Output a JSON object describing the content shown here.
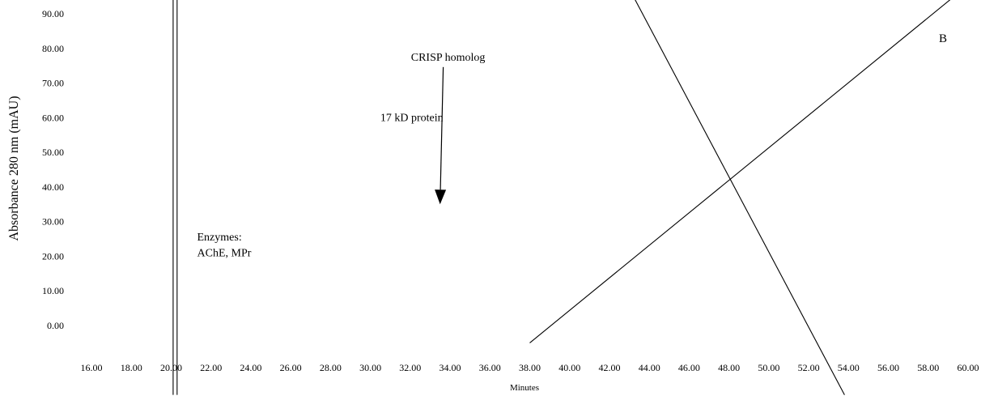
{
  "chart_data": {
    "type": "line",
    "xlabel": "Minutes",
    "ylabel": "Absorbance 280 nm (mAU)",
    "panel_label": "B",
    "xlim": [
      16,
      60
    ],
    "ylim": [
      0,
      90
    ],
    "x_ticks": [
      "16.00",
      "18.00",
      "20.00",
      "22.00",
      "24.00",
      "26.00",
      "28.00",
      "30.00",
      "32.00",
      "34.00",
      "36.00",
      "38.00",
      "40.00",
      "42.00",
      "44.00",
      "46.00",
      "48.00",
      "50.00",
      "52.00",
      "54.00",
      "56.00",
      "58.00",
      "60.00"
    ],
    "y_ticks": [
      "0.00",
      "10.00",
      "20.00",
      "30.00",
      "40.00",
      "50.00",
      "60.00",
      "70.00",
      "80.00",
      "90.00"
    ],
    "grid": false,
    "series": [
      {
        "x": [
          20.1,
          20.1
        ],
        "y": [
          -20,
          95
        ]
      },
      {
        "x": [
          20.3,
          20.3
        ],
        "y": [
          -20,
          95
        ]
      },
      {
        "x": [
          38.0,
          59.3
        ],
        "y": [
          -5,
          95
        ]
      },
      {
        "x": [
          43.2,
          53.8
        ],
        "y": [
          95,
          -20
        ]
      }
    ],
    "annotations": [
      {
        "text": "CRISP homolog",
        "x": 33.9,
        "y": 76.5,
        "arrow_to": {
          "x": 33.5,
          "y": 35
        }
      },
      {
        "text": "17 kD protein",
        "x": 30.5,
        "y": 59
      },
      {
        "text": "Enzymes:",
        "x": 21.3,
        "y": 24.5
      },
      {
        "text": "AChE, MPr",
        "x": 21.3,
        "y": 20
      }
    ]
  }
}
